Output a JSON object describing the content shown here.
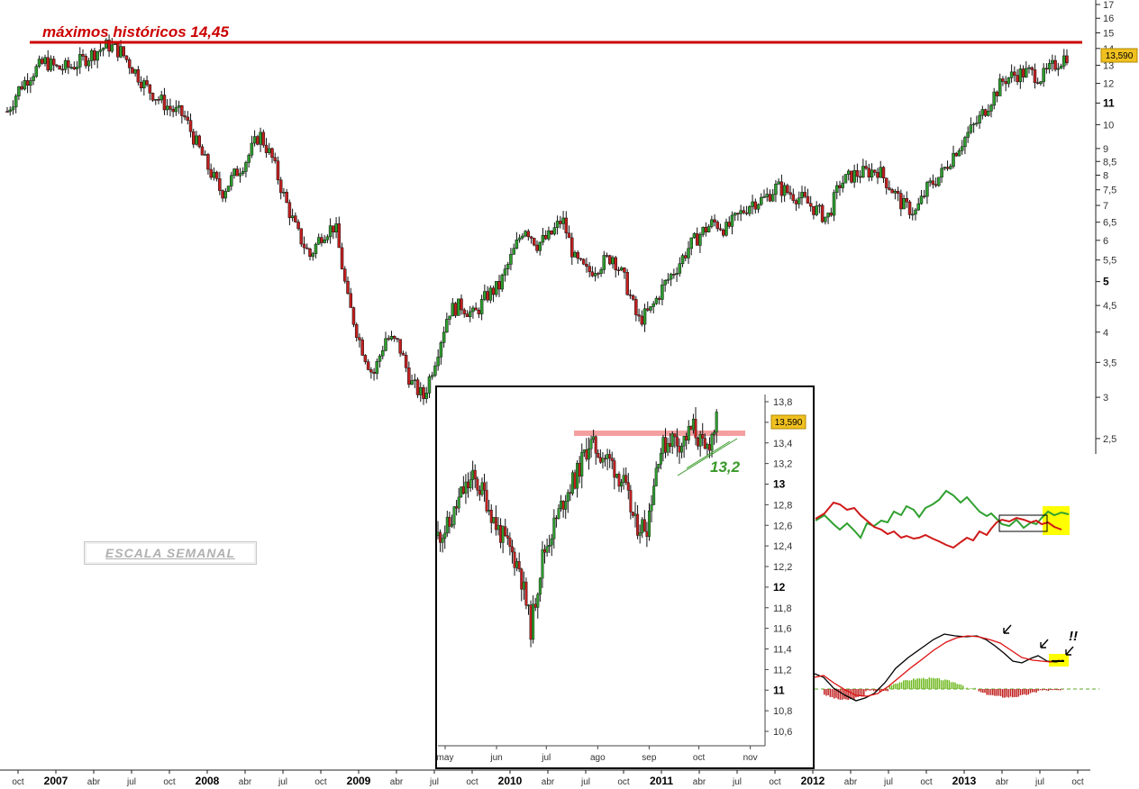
{
  "annotations": {
    "ath_label": "máximos históricos 14,45",
    "support_label": "13,2",
    "alert_label": "!!",
    "scale_label": "ESCALA SEMANAL"
  },
  "colors": {
    "ath_line": "#cc0000",
    "resistance_band": "#f4a0a0",
    "price_badge": "#f0c020",
    "up_candle": "#2e9d2e",
    "down_candle": "#c21f1f",
    "green_line": "#30a030",
    "red_line": "#d01818",
    "macd_line": "#000000",
    "signal_line": "#dd1111",
    "highlight": "#ffff00"
  },
  "chart_data": [
    {
      "id": "weekly",
      "type": "candlestick",
      "y_scale": "log",
      "ylim": [
        2.45,
        17
      ],
      "price_label": "13,590",
      "ath_value": 14.45,
      "y_ticks": [
        "17",
        "16",
        "15",
        "14",
        "13",
        "12",
        "11",
        "10",
        "9",
        "8,5",
        "8",
        "7,5",
        "7",
        "6,5",
        "6",
        "5,5",
        "5",
        "4,5",
        "4",
        "3,5",
        "3",
        "2,5"
      ],
      "y_tick_values": [
        17,
        16,
        15,
        14,
        13,
        12,
        11,
        10,
        9,
        8.5,
        8,
        7.5,
        7,
        6.5,
        6,
        5.5,
        5,
        4.5,
        4,
        3.5,
        3,
        2.5
      ],
      "y_bold_ticks": [
        "11",
        "5"
      ],
      "x_labels": [
        "oct",
        "2007",
        "abr",
        "jul",
        "oct",
        "2008",
        "abr",
        "jul",
        "oct",
        "2009",
        "abr",
        "jul",
        "oct",
        "2010",
        "abr",
        "jul",
        "oct",
        "2011",
        "abr",
        "jul",
        "oct",
        "2012",
        "abr",
        "jul",
        "oct",
        "2013",
        "abr",
        "jul",
        "oct"
      ],
      "x_bold_labels": [
        "2007",
        "2008",
        "2009",
        "2010",
        "2011",
        "2012",
        "2013"
      ],
      "x_range": [
        "2006-10",
        "2013-10"
      ],
      "path": [
        [
          "2006-10",
          10.6
        ],
        [
          "2006-11",
          11.8
        ],
        [
          "2006-12",
          12.6
        ],
        [
          "2007-01",
          13.2
        ],
        [
          "2007-02",
          12.8
        ],
        [
          "2007-03",
          12.9
        ],
        [
          "2007-04",
          13.3
        ],
        [
          "2007-05",
          13.8
        ],
        [
          "2007-06",
          14.2
        ],
        [
          "2007-07",
          13.8
        ],
        [
          "2007-08",
          12.8
        ],
        [
          "2007-09",
          11.8
        ],
        [
          "2007-10",
          11.2
        ],
        [
          "2007-11",
          10.7
        ],
        [
          "2007-12",
          10.4
        ],
        [
          "2008-01",
          9.2
        ],
        [
          "2008-02",
          8.2
        ],
        [
          "2008-03",
          7.4
        ],
        [
          "2008-04",
          8.0
        ],
        [
          "2008-05",
          8.6
        ],
        [
          "2008-06",
          9.6
        ],
        [
          "2008-07",
          8.6
        ],
        [
          "2008-08",
          7.2
        ],
        [
          "2008-09",
          6.2
        ],
        [
          "2008-10",
          5.6
        ],
        [
          "2008-11",
          6.2
        ],
        [
          "2008-12",
          6.4
        ],
        [
          "2009-01",
          4.6
        ],
        [
          "2009-02",
          3.8
        ],
        [
          "2009-03",
          3.3
        ],
        [
          "2009-04",
          3.9
        ],
        [
          "2009-05",
          3.8
        ],
        [
          "2009-06",
          3.2
        ],
        [
          "2009-07",
          3.0
        ],
        [
          "2009-08",
          3.6
        ],
        [
          "2009-09",
          4.4
        ],
        [
          "2009-10",
          4.5
        ],
        [
          "2009-11",
          4.3
        ],
        [
          "2009-12",
          4.7
        ],
        [
          "2010-01",
          4.9
        ],
        [
          "2010-02",
          5.6
        ],
        [
          "2010-03",
          6.4
        ],
        [
          "2010-04",
          5.9
        ],
        [
          "2010-05",
          6.1
        ],
        [
          "2010-06",
          6.6
        ],
        [
          "2010-07",
          5.5
        ],
        [
          "2010-08",
          5.2
        ],
        [
          "2010-09",
          5.4
        ],
        [
          "2010-10",
          5.6
        ],
        [
          "2010-11",
          5.0
        ],
        [
          "2010-12",
          4.2
        ],
        [
          "2011-01",
          4.4
        ],
        [
          "2011-02",
          4.9
        ],
        [
          "2011-03",
          5.3
        ],
        [
          "2011-04",
          5.8
        ],
        [
          "2011-05",
          6.2
        ],
        [
          "2011-06",
          6.5
        ],
        [
          "2011-07",
          6.3
        ],
        [
          "2011-08",
          6.7
        ],
        [
          "2011-09",
          7.1
        ],
        [
          "2011-10",
          7.2
        ],
        [
          "2011-11",
          7.6
        ],
        [
          "2011-12",
          7.4
        ],
        [
          "2012-01",
          7.2
        ],
        [
          "2012-02",
          6.9
        ],
        [
          "2012-03",
          6.6
        ],
        [
          "2012-04",
          7.7
        ],
        [
          "2012-05",
          8.0
        ],
        [
          "2012-06",
          8.1
        ],
        [
          "2012-07",
          8.2
        ],
        [
          "2012-08",
          7.6
        ],
        [
          "2012-09",
          7.0
        ],
        [
          "2012-10",
          6.8
        ],
        [
          "2012-11",
          7.6
        ],
        [
          "2012-12",
          8.0
        ],
        [
          "2013-01",
          8.8
        ],
        [
          "2013-02",
          9.5
        ],
        [
          "2013-03",
          10.2
        ],
        [
          "2013-04",
          11.2
        ],
        [
          "2013-05",
          12.2
        ],
        [
          "2013-06",
          12.5
        ],
        [
          "2013-07",
          12.6
        ],
        [
          "2013-08",
          12.3
        ],
        [
          "2013-09",
          13.0
        ],
        [
          "2013-10",
          13.59
        ]
      ]
    },
    {
      "id": "daily-inset",
      "type": "candlestick",
      "ylim": [
        10.45,
        13.95
      ],
      "price_label": "13,590",
      "resistance_value": 13.45,
      "support_label_value": "13,2",
      "y_ticks": [
        "13,8",
        "13,6",
        "13,4",
        "13,2",
        "13",
        "12,8",
        "12,6",
        "12,4",
        "12,2",
        "12",
        "11,8",
        "11,6",
        "11,4",
        "11,2",
        "11",
        "10,8",
        "10,6"
      ],
      "y_tick_values": [
        13.8,
        13.6,
        13.4,
        13.2,
        13,
        12.8,
        12.6,
        12.4,
        12.2,
        12,
        11.8,
        11.6,
        11.4,
        11.2,
        11,
        10.8,
        10.6
      ],
      "y_bold_ticks": [
        "13",
        "12",
        "11"
      ],
      "x_labels": [
        "may",
        "jun",
        "jul",
        "ago",
        "sep",
        "oct",
        "nov"
      ],
      "x_range": [
        "2013-05-01",
        "2013-11-05"
      ],
      "path": [
        [
          "2013-05-01",
          12.5
        ],
        [
          "2013-05-08",
          12.6
        ],
        [
          "2013-05-15",
          12.9
        ],
        [
          "2013-05-22",
          13.05
        ],
        [
          "2013-05-29",
          12.9
        ],
        [
          "2013-06-05",
          12.6
        ],
        [
          "2013-06-12",
          12.4
        ],
        [
          "2013-06-19",
          12.2
        ],
        [
          "2013-06-26",
          11.6
        ],
        [
          "2013-07-03",
          12.3
        ],
        [
          "2013-07-10",
          12.6
        ],
        [
          "2013-07-17",
          12.9
        ],
        [
          "2013-07-24",
          13.1
        ],
        [
          "2013-07-31",
          13.4
        ],
        [
          "2013-08-07",
          13.3
        ],
        [
          "2013-08-14",
          13.2
        ],
        [
          "2013-08-21",
          13.0
        ],
        [
          "2013-08-28",
          12.6
        ],
        [
          "2013-09-04",
          12.6
        ],
        [
          "2013-09-11",
          13.3
        ],
        [
          "2013-09-18",
          13.45
        ],
        [
          "2013-09-25",
          13.4
        ],
        [
          "2013-10-02",
          13.55
        ],
        [
          "2013-10-09",
          13.3
        ],
        [
          "2013-10-16",
          13.6
        ]
      ]
    }
  ],
  "x_label_positions_note": ""
}
